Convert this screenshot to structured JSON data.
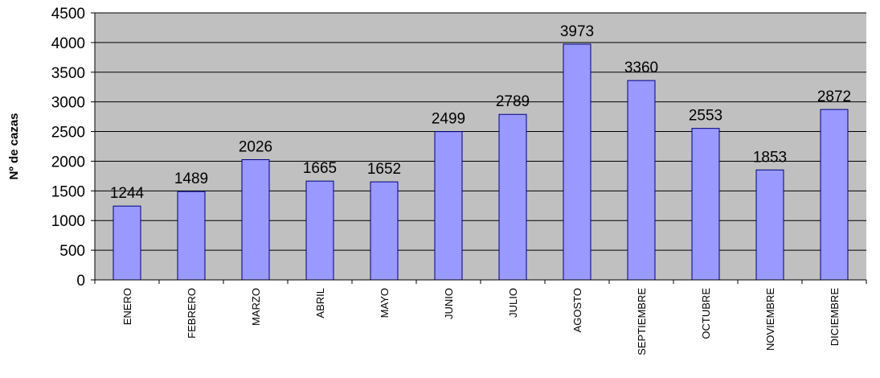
{
  "chart_data": {
    "type": "bar",
    "ylabel": "Nº de cazas",
    "xlabel": "",
    "title": "",
    "ylim": [
      0,
      4500
    ],
    "ytick_step": 500,
    "grid": true,
    "legend": "none",
    "categories": [
      "ENERO",
      "FEBRERO",
      "MARZO",
      "ABRIL",
      "MAYO",
      "JUNIO",
      "JULIO",
      "AGOSTO",
      "SEPTIEMBRE",
      "OCTUBRE",
      "NOVIEMBRE",
      "DICIEMBRE"
    ],
    "values": [
      1244,
      1489,
      2026,
      1665,
      1652,
      2499,
      2789,
      3973,
      3360,
      2553,
      1853,
      2872
    ],
    "colors": {
      "bar_fill": "#9999ff",
      "bar_stroke": "#000080",
      "plot_background": "#c0c0c0",
      "gridline": "#000000"
    }
  }
}
